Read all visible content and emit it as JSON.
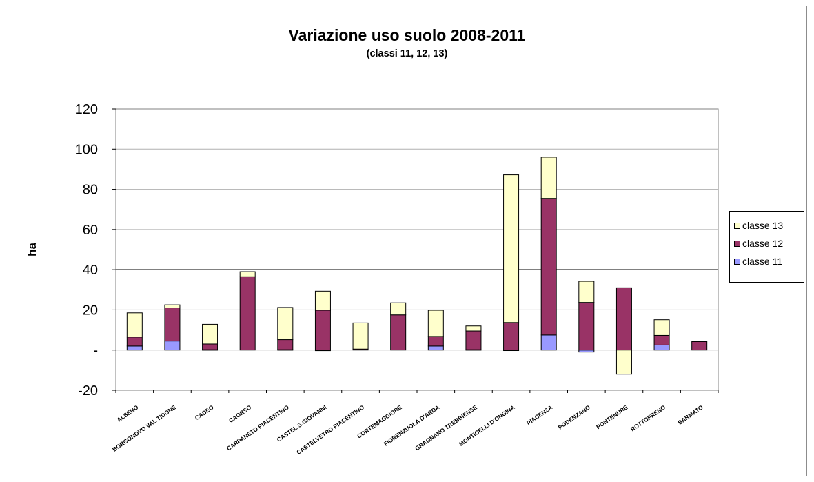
{
  "chart_data": {
    "type": "bar",
    "stacked": true,
    "title": "Variazione uso suolo 2008-2011",
    "subtitle": "(classi 11, 12, 13)",
    "ylabel": "ha",
    "xlabel": "",
    "ylim": [
      -20,
      120
    ],
    "yticks": [
      {
        "value": 120,
        "label": "120"
      },
      {
        "value": 100,
        "label": "100"
      },
      {
        "value": 80,
        "label": "80"
      },
      {
        "value": 60,
        "label": "60"
      },
      {
        "value": 40,
        "label": "40"
      },
      {
        "value": 20,
        "label": "20"
      },
      {
        "value": 0,
        "label": "-"
      },
      {
        "value": -20,
        "label": "-20"
      }
    ],
    "grid": true,
    "legend_position": "right",
    "categories": [
      "ALSENO",
      "BORGONOVO VAL TIDONE",
      "CADEO",
      "CAORSO",
      "CARPANETO PIACENTINO",
      "CASTEL S.GIOVANNI",
      "CASTELVETRO PIACENTINO",
      "CORTEMAGGIORE",
      "FIORENZUOLA D'ARDA",
      "GRAGNANO TREBBIENSE",
      "MONTICELLI D'ONGINA",
      "PIACENZA",
      "PODENZANO",
      "PONTENURE",
      "ROTTOFRENO",
      "SARMATO"
    ],
    "series": [
      {
        "name": "classe 11",
        "color": "#9999ff",
        "values": [
          2,
          4.5,
          0.2,
          0,
          0.2,
          -0.3,
          0,
          0,
          2,
          0.2,
          -0.2,
          7.5,
          -1,
          0,
          2.5,
          0
        ]
      },
      {
        "name": "classe 12",
        "color": "#993366",
        "values": [
          4.5,
          16.5,
          2.8,
          36.5,
          5,
          19.8,
          0.5,
          17.5,
          4.8,
          9.3,
          13.7,
          68,
          23.7,
          31,
          4.8,
          4.2
        ]
      },
      {
        "name": "classe 13",
        "color": "#ffffcc",
        "values": [
          12,
          1.5,
          9.8,
          2.5,
          16,
          9.5,
          13,
          6,
          13,
          2.5,
          73.5,
          20.5,
          10.5,
          -12,
          7.8,
          0
        ]
      }
    ],
    "legend_order": [
      "classe 13",
      "classe 12",
      "classe 11"
    ]
  }
}
